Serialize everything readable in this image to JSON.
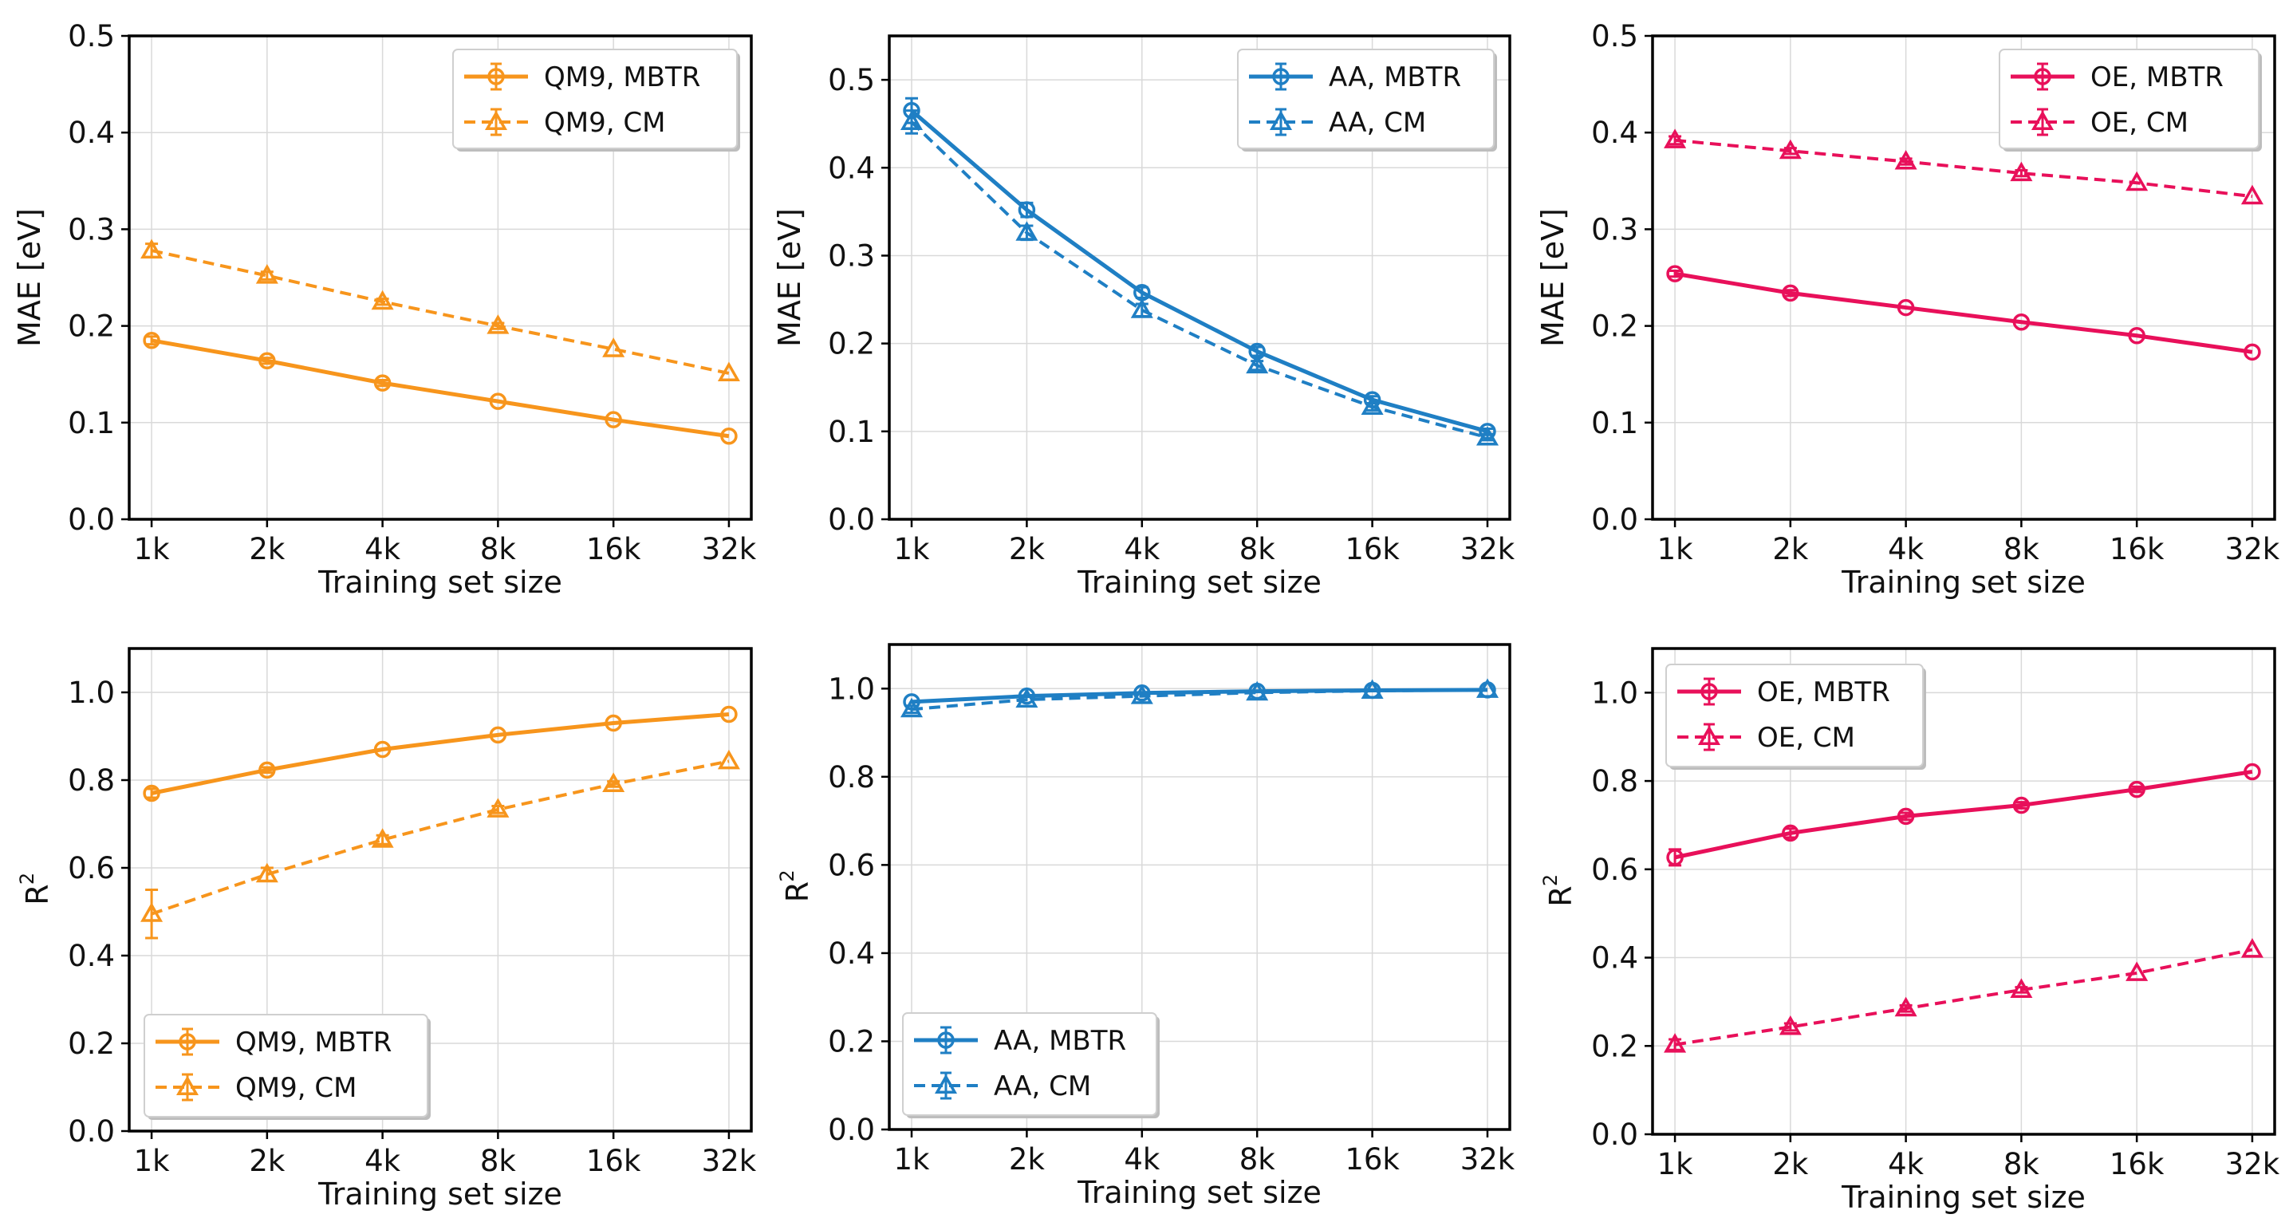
{
  "figure": {
    "description_free": true
  },
  "colors": {
    "QM9": "#f7951c",
    "AA": "#1f7fc4",
    "OE": "#e8105a",
    "grid": "#d9d9d9",
    "axis": "#000000"
  },
  "chart_data": [
    {
      "id": "qm9-mae",
      "type": "line",
      "categories": [
        "1k",
        "2k",
        "4k",
        "8k",
        "16k",
        "32k"
      ],
      "xlabel": "Training set size",
      "ylabel": "MAE [eV]",
      "ylim": [
        0,
        0.5
      ],
      "yticks": [
        0.0,
        0.1,
        0.2,
        0.3,
        0.4,
        0.5
      ],
      "ytick_labels": [
        "0.0",
        "0.1",
        "0.2",
        "0.3",
        "0.4",
        "0.5"
      ],
      "grid": true,
      "legend": "top-right",
      "color": "#f7951c",
      "series": [
        {
          "name": "QM9, MBTR",
          "style": "solid",
          "marker": "circle",
          "values": [
            0.185,
            0.164,
            0.141,
            0.122,
            0.103,
            0.086
          ],
          "errors": [
            0.004,
            0.003,
            0.003,
            0.002,
            0.002,
            0.002
          ]
        },
        {
          "name": "QM9, CM",
          "style": "dashed",
          "marker": "triangle",
          "values": [
            0.278,
            0.252,
            0.225,
            0.2,
            0.176,
            0.151
          ],
          "errors": [
            0.007,
            0.004,
            0.003,
            0.003,
            0.002,
            0.002
          ]
        }
      ]
    },
    {
      "id": "aa-mae",
      "type": "line",
      "categories": [
        "1k",
        "2k",
        "4k",
        "8k",
        "16k",
        "32k"
      ],
      "xlabel": "Training set size",
      "ylabel": "MAE [eV]",
      "ylim": [
        0,
        0.55
      ],
      "yticks": [
        0.0,
        0.1,
        0.2,
        0.3,
        0.4,
        0.5
      ],
      "ytick_labels": [
        "0.0",
        "0.1",
        "0.2",
        "0.3",
        "0.4",
        "0.5"
      ],
      "grid": true,
      "legend": "top-right",
      "color": "#1f7fc4",
      "series": [
        {
          "name": "AA, MBTR",
          "style": "solid",
          "marker": "circle",
          "values": [
            0.465,
            0.352,
            0.258,
            0.191,
            0.136,
            0.1
          ],
          "errors": [
            0.014,
            0.008,
            0.006,
            0.005,
            0.004,
            0.003
          ]
        },
        {
          "name": "AA, CM",
          "style": "dashed",
          "marker": "triangle",
          "values": [
            0.452,
            0.326,
            0.238,
            0.175,
            0.128,
            0.093
          ],
          "errors": [
            0.013,
            0.008,
            0.007,
            0.005,
            0.004,
            0.003
          ]
        }
      ]
    },
    {
      "id": "oe-mae",
      "type": "line",
      "categories": [
        "1k",
        "2k",
        "4k",
        "8k",
        "16k",
        "32k"
      ],
      "xlabel": "Training set size",
      "ylabel": "MAE [eV]",
      "ylim": [
        0,
        0.5
      ],
      "yticks": [
        0.0,
        0.1,
        0.2,
        0.3,
        0.4,
        0.5
      ],
      "ytick_labels": [
        "0.0",
        "0.1",
        "0.2",
        "0.3",
        "0.4",
        "0.5"
      ],
      "grid": true,
      "legend": "top-right",
      "color": "#e8105a",
      "series": [
        {
          "name": "OE, MBTR",
          "style": "solid",
          "marker": "circle",
          "values": [
            0.254,
            0.234,
            0.219,
            0.204,
            0.19,
            0.173
          ],
          "errors": [
            0.003,
            0.003,
            0.002,
            0.002,
            0.002,
            0.002
          ]
        },
        {
          "name": "OE, CM",
          "style": "dashed",
          "marker": "triangle",
          "values": [
            0.392,
            0.381,
            0.37,
            0.358,
            0.348,
            0.334
          ],
          "errors": [
            0.004,
            0.003,
            0.003,
            0.003,
            0.002,
            0.002
          ]
        }
      ]
    },
    {
      "id": "qm9-r2",
      "type": "line",
      "categories": [
        "1k",
        "2k",
        "4k",
        "8k",
        "16k",
        "32k"
      ],
      "xlabel": "Training set size",
      "ylabel_base": "R",
      "ylabel_sup": "2",
      "ylim": [
        0,
        1.1
      ],
      "yticks": [
        0.0,
        0.2,
        0.4,
        0.6,
        0.8,
        1.0
      ],
      "ytick_labels": [
        "0.0",
        "0.2",
        "0.4",
        "0.6",
        "0.8",
        "1.0"
      ],
      "grid": true,
      "legend": "bottom-left",
      "color": "#f7951c",
      "series": [
        {
          "name": "QM9, MBTR",
          "style": "solid",
          "marker": "circle",
          "values": [
            0.77,
            0.823,
            0.87,
            0.903,
            0.93,
            0.95
          ],
          "errors": [
            0.01,
            0.006,
            0.005,
            0.004,
            0.003,
            0.002
          ]
        },
        {
          "name": "QM9, CM",
          "style": "dashed",
          "marker": "triangle",
          "values": [
            0.495,
            0.585,
            0.664,
            0.733,
            0.791,
            0.843
          ],
          "errors": [
            0.055,
            0.015,
            0.01,
            0.008,
            0.006,
            0.005
          ]
        }
      ]
    },
    {
      "id": "aa-r2",
      "type": "line",
      "categories": [
        "1k",
        "2k",
        "4k",
        "8k",
        "16k",
        "32k"
      ],
      "xlabel": "Training set size",
      "ylabel_base": "R",
      "ylabel_sup": "2",
      "ylim": [
        0,
        1.1
      ],
      "yticks": [
        0.0,
        0.2,
        0.4,
        0.6,
        0.8,
        1.0
      ],
      "ytick_labels": [
        "0.0",
        "0.2",
        "0.4",
        "0.6",
        "0.8",
        "1.0"
      ],
      "grid": true,
      "legend": "bottom-left",
      "color": "#1f7fc4",
      "series": [
        {
          "name": "AA, MBTR",
          "style": "solid",
          "marker": "circle",
          "values": [
            0.97,
            0.983,
            0.99,
            0.994,
            0.996,
            0.997
          ],
          "errors": [
            0.005,
            0.003,
            0.002,
            0.002,
            0.001,
            0.001
          ]
        },
        {
          "name": "AA, CM",
          "style": "dashed",
          "marker": "triangle",
          "values": [
            0.953,
            0.975,
            0.983,
            0.991,
            0.995,
            0.997
          ],
          "errors": [
            0.008,
            0.005,
            0.004,
            0.003,
            0.002,
            0.001
          ]
        }
      ]
    },
    {
      "id": "oe-r2",
      "type": "line",
      "categories": [
        "1k",
        "2k",
        "4k",
        "8k",
        "16k",
        "32k"
      ],
      "xlabel": "Training set size",
      "ylabel_base": "R",
      "ylabel_sup": "2",
      "ylim": [
        0,
        1.1
      ],
      "yticks": [
        0.0,
        0.2,
        0.4,
        0.6,
        0.8,
        1.0
      ],
      "ytick_labels": [
        "0.0",
        "0.2",
        "0.4",
        "0.6",
        "0.8",
        "1.0"
      ],
      "grid": true,
      "legend": "top-left",
      "color": "#e8105a",
      "series": [
        {
          "name": "OE, MBTR",
          "style": "solid",
          "marker": "circle",
          "values": [
            0.627,
            0.682,
            0.72,
            0.745,
            0.781,
            0.821
          ],
          "errors": [
            0.018,
            0.01,
            0.008,
            0.007,
            0.006,
            0.005
          ]
        },
        {
          "name": "OE, CM",
          "style": "dashed",
          "marker": "triangle",
          "values": [
            0.203,
            0.243,
            0.285,
            0.327,
            0.365,
            0.418
          ],
          "errors": [
            0.012,
            0.008,
            0.007,
            0.006,
            0.005,
            0.004
          ]
        }
      ]
    }
  ]
}
